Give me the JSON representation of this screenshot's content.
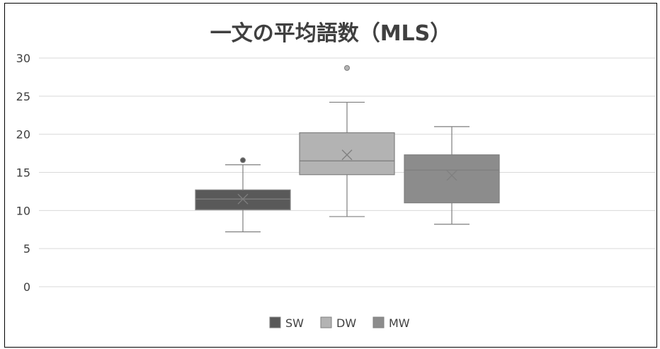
{
  "chart_data": {
    "type": "box",
    "title": "一文の平均語数（MLS）",
    "xlabel": "",
    "ylabel": "",
    "ylim": [
      0,
      30
    ],
    "y_ticks": [
      "0",
      "5",
      "10",
      "15",
      "20",
      "25",
      "30"
    ],
    "grid": "horizontal",
    "legend_position": "bottom",
    "series": [
      {
        "name": "SW",
        "color": "#595959",
        "min": 7.2,
        "q1": 10.1,
        "median": 11.5,
        "q3": 12.7,
        "max": 16.0,
        "mean": 11.5,
        "outliers": [
          16.6
        ]
      },
      {
        "name": "DW",
        "color": "#b3b3b3",
        "min": 9.2,
        "q1": 14.7,
        "median": 16.5,
        "q3": 20.2,
        "max": 24.2,
        "mean": 17.3,
        "outliers": [
          28.7
        ]
      },
      {
        "name": "MW",
        "color": "#8c8c8c",
        "min": 8.2,
        "q1": 11.0,
        "median": 15.3,
        "q3": 17.3,
        "max": 21.0,
        "mean": 14.6,
        "outliers": []
      }
    ]
  }
}
